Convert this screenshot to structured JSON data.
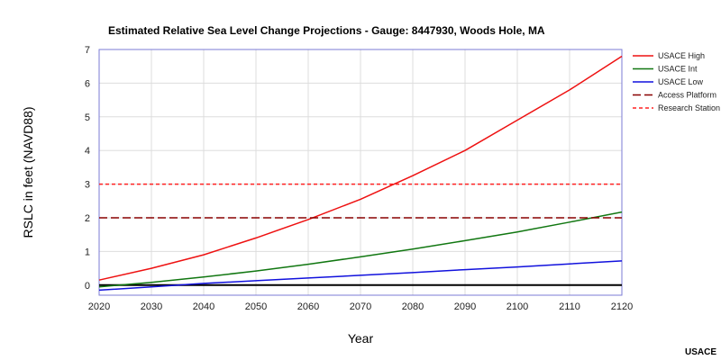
{
  "chart_data": {
    "type": "line",
    "title": "Estimated Relative Sea Level Change Projections - Gauge: 8447930, Woods Hole, MA",
    "xlabel": "Year",
    "ylabel": "RSLC in feet (NAVD88)",
    "xlim": [
      2020,
      2120
    ],
    "ylim": [
      -0.3,
      7
    ],
    "x_ticks": [
      2020,
      2030,
      2040,
      2050,
      2060,
      2070,
      2080,
      2090,
      2100,
      2110,
      2120
    ],
    "y_ticks": [
      0,
      1,
      2,
      3,
      4,
      5,
      6,
      7
    ],
    "grid": true,
    "legend_position": "right",
    "zero_line": true,
    "x": [
      2020,
      2030,
      2040,
      2050,
      2060,
      2070,
      2080,
      2090,
      2100,
      2110,
      2120
    ],
    "series": [
      {
        "name": "USACE High",
        "color": "#ee1111",
        "dash": "solid",
        "values": [
          0.15,
          0.5,
          0.9,
          1.4,
          1.95,
          2.55,
          3.25,
          4.0,
          4.9,
          5.8,
          6.8
        ]
      },
      {
        "name": "USACE Int",
        "color": "#117711",
        "dash": "solid",
        "values": [
          -0.05,
          0.08,
          0.24,
          0.42,
          0.62,
          0.84,
          1.07,
          1.32,
          1.58,
          1.87,
          2.17
        ]
      },
      {
        "name": "USACE Low",
        "color": "#1111dd",
        "dash": "solid",
        "values": [
          -0.15,
          -0.05,
          0.05,
          0.13,
          0.21,
          0.29,
          0.37,
          0.46,
          0.54,
          0.63,
          0.72
        ]
      },
      {
        "name": "Access Platform",
        "color": "#880000",
        "dash": "long",
        "values": [
          2,
          2,
          2,
          2,
          2,
          2,
          2,
          2,
          2,
          2,
          2
        ]
      },
      {
        "name": "Research Station",
        "color": "#ff2222",
        "dash": "short",
        "values": [
          3,
          3,
          3,
          3,
          3,
          3,
          3,
          3,
          3,
          3,
          3
        ]
      }
    ],
    "source": "USACE"
  }
}
